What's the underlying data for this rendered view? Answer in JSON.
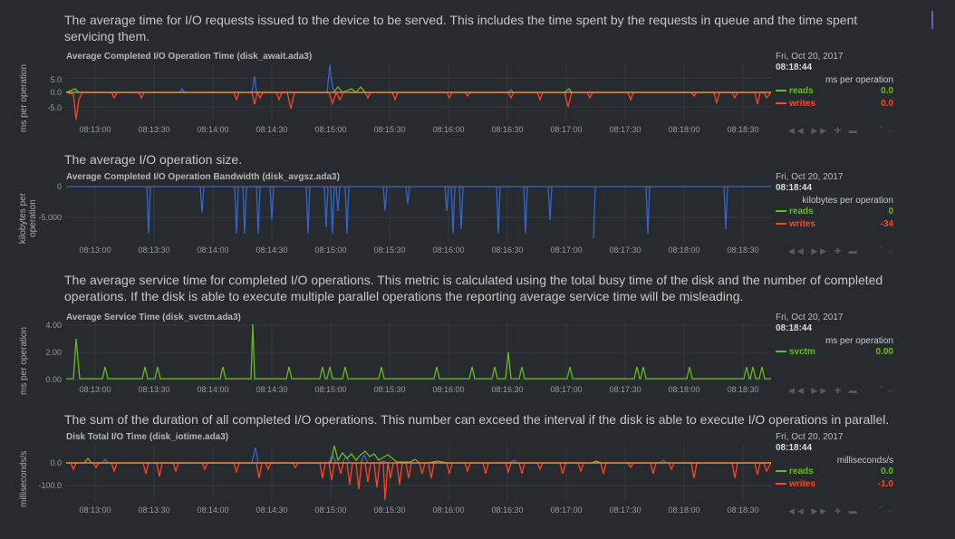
{
  "colors": {
    "reads": "#66bb22",
    "writes": "#ff4422",
    "blue": "#3366cc",
    "svctm": "#66bb22"
  },
  "x_ticks": [
    "08:13:00",
    "08:13:30",
    "08:14:00",
    "08:14:30",
    "08:15:00",
    "08:15:30",
    "08:16:00",
    "08:16:30",
    "08:17:00",
    "08:17:30",
    "08:18:00",
    "08:18:30"
  ],
  "charts": [
    {
      "description": "The average time for I/O requests issued to the device to be served. This includes the time spent by the requests in queue and the time spent servicing them.",
      "title": "Average Completed I/O Operation Time (disk_await.ada3)",
      "ylabel": "ms per operation",
      "yticks": [
        "5.0",
        "0.0",
        "-5.0"
      ],
      "legend": {
        "date": "Fri, Oct 20, 2017",
        "time": "08:18:44",
        "units": "ms per operation",
        "rows": [
          {
            "name": "reads",
            "value": "0.0"
          },
          {
            "name": "writes",
            "value": "0.0"
          }
        ]
      }
    },
    {
      "description": "The average I/O operation size.",
      "title": "Average Completed I/O Operation Bandwidth (disk_avgsz.ada3)",
      "ylabel": "kilobytes per operation",
      "yticks": [
        "0",
        "-5,000"
      ],
      "legend": {
        "date": "Fri, Oct 20, 2017",
        "time": "08:18:44",
        "units": "kilobytes per operation",
        "rows": [
          {
            "name": "reads",
            "value": "0"
          },
          {
            "name": "writes",
            "value": "-34"
          }
        ]
      }
    },
    {
      "description": "The average service time for completed I/O operations. This metric is calculated using the total busy time of the disk and the number of completed operations. If the disk is able to execute multiple parallel operations the reporting average service time will be misleading.",
      "title": "Average Service Time (disk_svctm.ada3)",
      "ylabel": "ms per operation",
      "yticks": [
        "4.00",
        "2.00",
        "0.00"
      ],
      "legend": {
        "date": "Fri, Oct 20, 2017",
        "time": "08:18:44",
        "units": "ms per operation",
        "rows": [
          {
            "name": "svctm",
            "value": "0.00"
          }
        ]
      }
    },
    {
      "description": "The sum of the duration of all completed I/O operations. This number can exceed the interval if the disk is able to execute I/O operations in parallel.",
      "title": "Disk Total I/O Time (disk_iotime.ada3)",
      "ylabel": "milliseconds/s",
      "yticks": [
        "0.0",
        "-100.0"
      ],
      "legend": {
        "date": "Fri, Oct 20, 2017",
        "time": "08:18:44",
        "units": "milliseconds/s",
        "rows": [
          {
            "name": "reads",
            "value": "0.0"
          },
          {
            "name": "writes",
            "value": "-1.0"
          }
        ]
      }
    }
  ]
}
